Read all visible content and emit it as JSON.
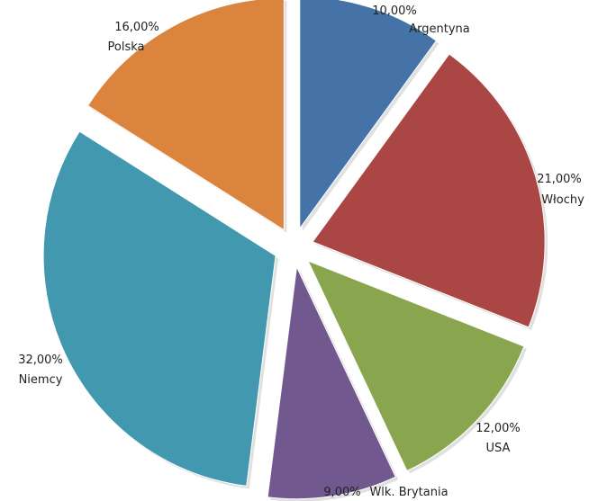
{
  "chart_data": {
    "type": "pie",
    "exploded": true,
    "categories": [
      "Argentyna",
      "Włochy",
      "USA",
      "Wlk. Brytania",
      "Niemcy",
      "Polska"
    ],
    "values": [
      10,
      21,
      12,
      9,
      32,
      16
    ],
    "value_labels": [
      "10,00%",
      "21,00%",
      "12,00%",
      "9,00%",
      "32,00%",
      "16,00%"
    ],
    "colors": [
      "#4572A7",
      "#AA4643",
      "#89A54E",
      "#71588F",
      "#4198AF",
      "#DB843D"
    ],
    "legend": "none",
    "title": ""
  }
}
